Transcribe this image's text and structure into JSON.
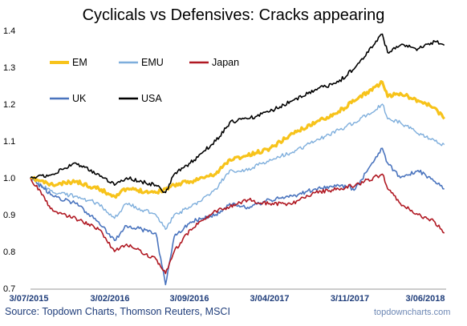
{
  "title": "Cyclicals vs Defensives: Cracks appearing",
  "source": "Source: Topdown Charts, Thomson Reuters, MSCI",
  "watermark": "topdowncharts.com",
  "chart_data": {
    "type": "line",
    "title": "Cyclicals vs Defensives: Cracks appearing",
    "xlabel": "",
    "ylabel": "",
    "ylim": [
      0.7,
      1.4
    ],
    "y_ticks": [
      "0.7",
      "0.8",
      "0.9",
      "1.0",
      "1.1",
      "1.2",
      "1.3",
      "1.4"
    ],
    "x_ticks": [
      "3/07/2015",
      "3/02/2016",
      "3/09/2016",
      "3/04/2017",
      "3/11/2017",
      "3/06/2018"
    ],
    "x_range": [
      "2015-07-03",
      "2018-07-15"
    ],
    "grid": false,
    "legend_position": "top-left",
    "x": [
      "2015-07-03",
      "2015-09-01",
      "2015-11-01",
      "2016-01-01",
      "2016-02-12",
      "2016-03-15",
      "2016-06-01",
      "2016-06-27",
      "2016-07-20",
      "2016-09-01",
      "2016-11-08",
      "2016-12-15",
      "2017-02-01",
      "2017-04-01",
      "2017-06-01",
      "2017-08-01",
      "2017-10-01",
      "2017-11-15",
      "2018-01-26",
      "2018-02-09",
      "2018-03-15",
      "2018-05-01",
      "2018-06-15",
      "2018-07-10"
    ],
    "series": [
      {
        "name": "EM",
        "color": "#f7c31b",
        "values": [
          1.0,
          0.98,
          0.99,
          0.97,
          0.95,
          0.97,
          0.96,
          0.97,
          0.98,
          0.99,
          1.01,
          1.05,
          1.06,
          1.08,
          1.12,
          1.15,
          1.18,
          1.21,
          1.26,
          1.22,
          1.23,
          1.21,
          1.19,
          1.16
        ]
      },
      {
        "name": "EMU",
        "color": "#7eaedc",
        "values": [
          1.0,
          0.96,
          0.95,
          0.93,
          0.89,
          0.93,
          0.9,
          0.86,
          0.9,
          0.92,
          0.97,
          1.02,
          1.02,
          1.05,
          1.07,
          1.1,
          1.13,
          1.15,
          1.2,
          1.16,
          1.15,
          1.12,
          1.1,
          1.09
        ]
      },
      {
        "name": "Japan",
        "color": "#b01822",
        "values": [
          1.0,
          0.91,
          0.89,
          0.86,
          0.8,
          0.82,
          0.78,
          0.74,
          0.8,
          0.86,
          0.91,
          0.92,
          0.94,
          0.93,
          0.93,
          0.96,
          0.97,
          0.98,
          1.01,
          0.97,
          0.93,
          0.9,
          0.88,
          0.85
        ]
      },
      {
        "name": "UK",
        "color": "#4a74be",
        "values": [
          1.0,
          0.95,
          0.93,
          0.88,
          0.83,
          0.87,
          0.85,
          0.71,
          0.84,
          0.88,
          0.9,
          0.93,
          0.92,
          0.94,
          0.95,
          0.97,
          0.98,
          0.97,
          1.08,
          1.04,
          1.0,
          1.02,
          0.99,
          0.97
        ]
      },
      {
        "name": "USA",
        "color": "#000000",
        "values": [
          1.0,
          1.01,
          1.04,
          1.01,
          0.98,
          1.0,
          0.98,
          0.96,
          1.01,
          1.04,
          1.1,
          1.15,
          1.16,
          1.18,
          1.21,
          1.24,
          1.26,
          1.3,
          1.39,
          1.34,
          1.36,
          1.35,
          1.37,
          1.36
        ]
      }
    ]
  }
}
